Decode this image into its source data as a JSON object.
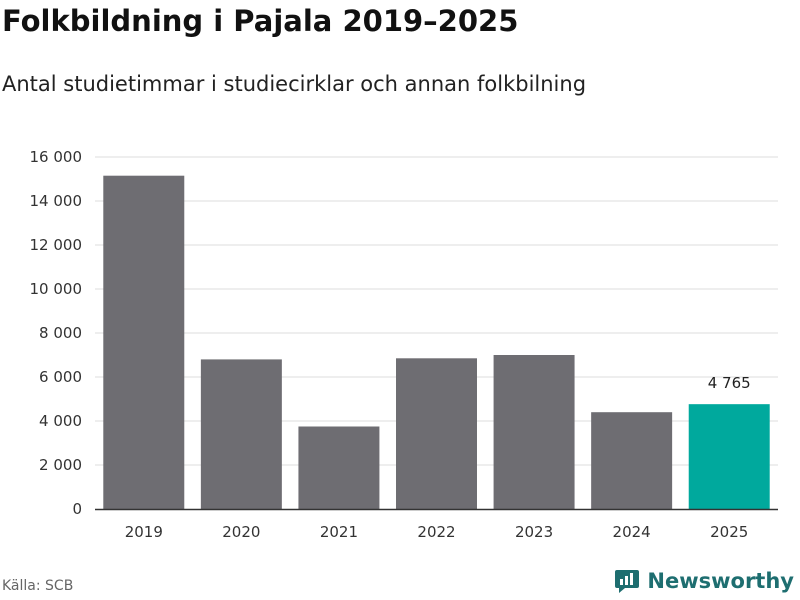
{
  "header": {
    "title": "Folkbildning i Pajala 2019–2025",
    "subtitle": "Antal studietimmar i studiecirklar och annan folkbilning"
  },
  "footer": {
    "source": "Källa: SCB",
    "brand": "Newsworthy"
  },
  "colors": {
    "bar": "#6e6d72",
    "highlight": "#00a99d",
    "grid": "#dddddd",
    "axis": "#333333",
    "brand": "#1e6e70"
  },
  "chart_data": {
    "type": "bar",
    "categories": [
      "2019",
      "2020",
      "2021",
      "2022",
      "2023",
      "2024",
      "2025"
    ],
    "values": [
      15150,
      6800,
      3750,
      6850,
      7000,
      4400,
      4765
    ],
    "highlight_index": 6,
    "data_labels": [
      {
        "index": 6,
        "text": "4 765"
      }
    ],
    "yticks": [
      0,
      2000,
      4000,
      6000,
      8000,
      10000,
      12000,
      14000,
      16000
    ],
    "ytick_labels": [
      "0",
      "2 000",
      "4 000",
      "6 000",
      "8 000",
      "10 000",
      "12 000",
      "14 000",
      "16 000"
    ],
    "ylim": [
      0,
      16000
    ],
    "grid": true,
    "legend": "none"
  }
}
